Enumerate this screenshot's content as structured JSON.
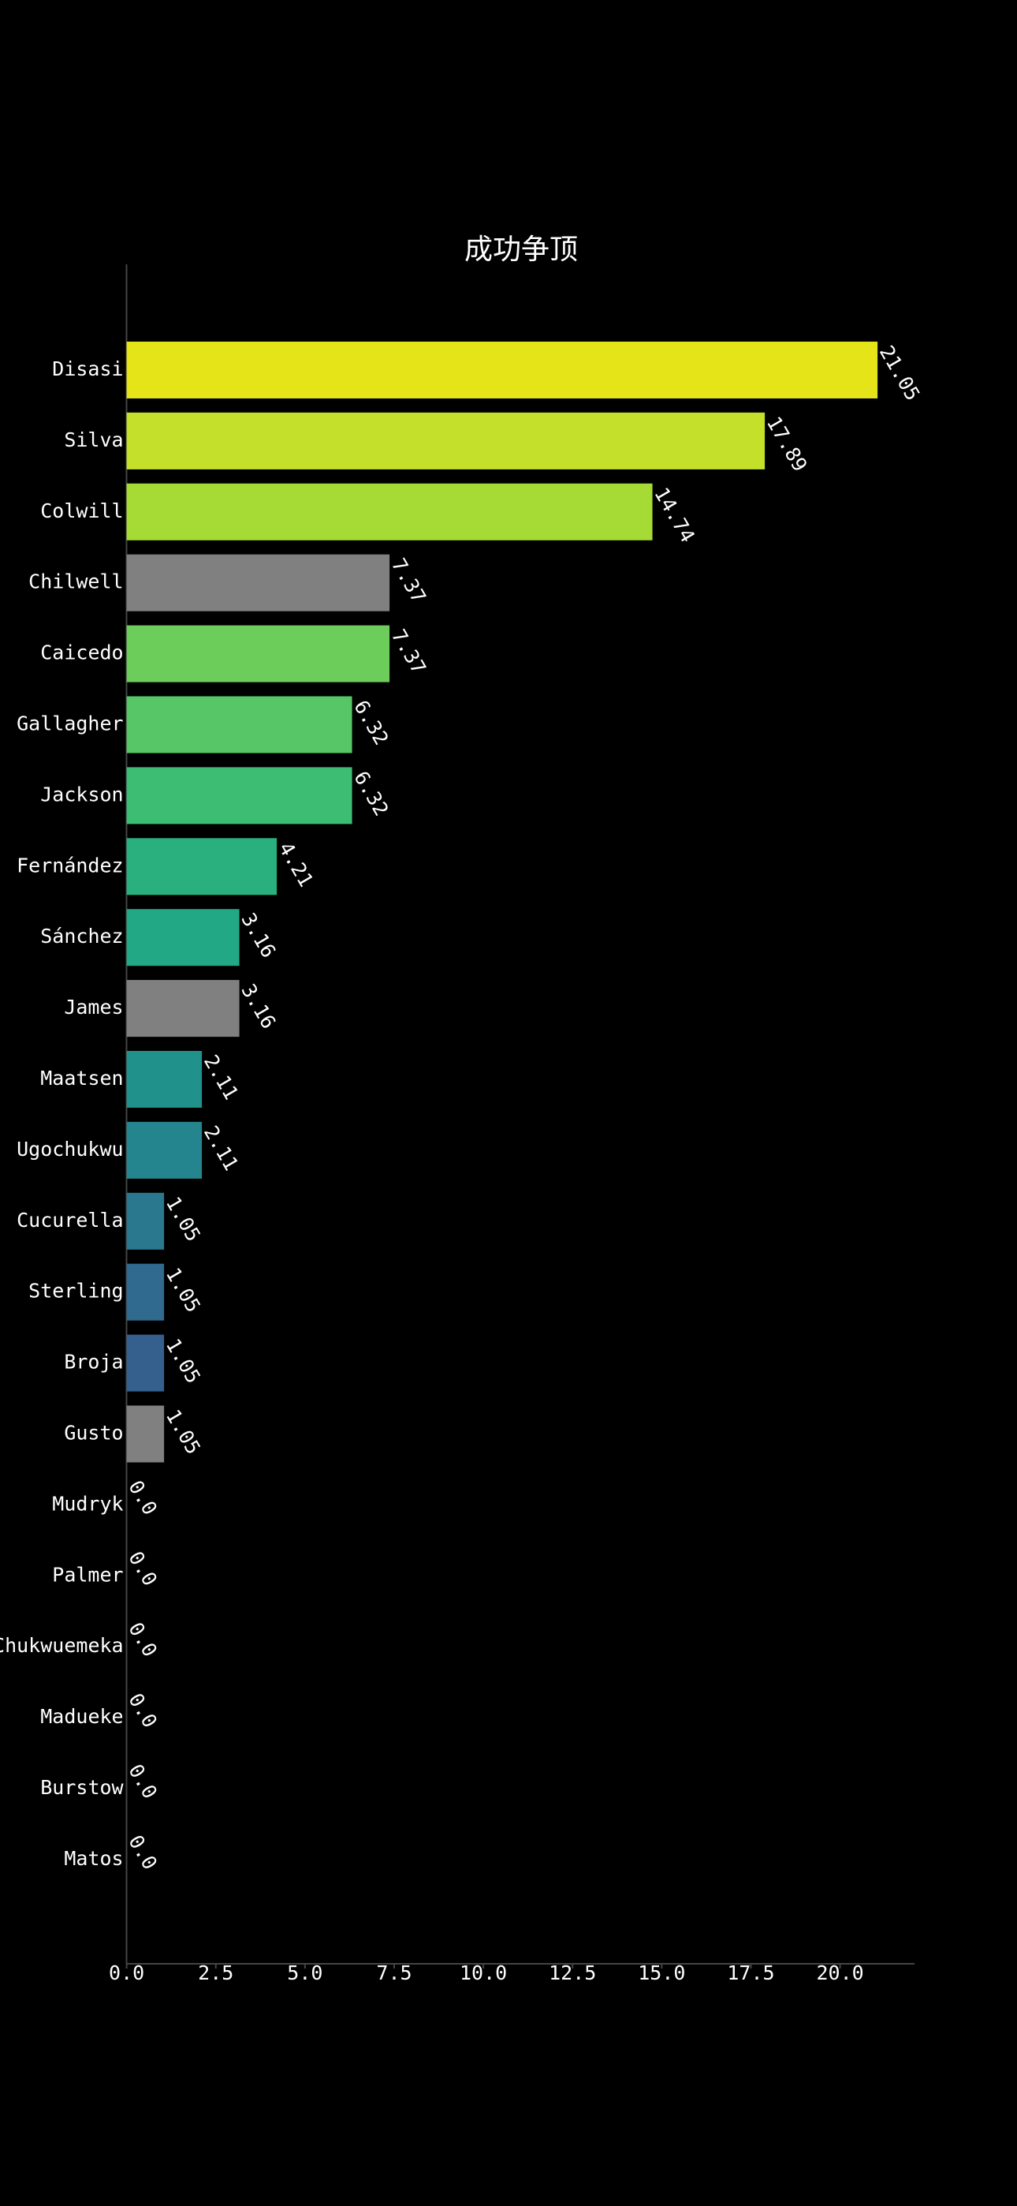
{
  "chart_data": {
    "type": "barh",
    "title": "成功争顶",
    "categories": [
      "Disasi",
      "Silva",
      "Colwill",
      "Chilwell",
      "Caicedo",
      "Gallagher",
      "Jackson",
      "Fernández",
      "Sánchez",
      "James",
      "Maatsen",
      "Ugochukwu",
      "Cucurella",
      "Sterling",
      "Broja",
      "Gusto",
      "Mudryk",
      "Palmer",
      "Chukwuemeka",
      "Madueke",
      "Burstow",
      "Matos"
    ],
    "values": [
      21.05,
      17.89,
      14.74,
      7.37,
      7.37,
      6.32,
      6.32,
      4.21,
      3.16,
      3.16,
      2.11,
      2.11,
      1.05,
      1.05,
      1.05,
      1.05,
      0,
      0,
      0,
      0,
      0,
      0
    ],
    "value_labels": [
      "21.05",
      "17.89",
      "14.74",
      "7.37",
      "7.37",
      "6.32",
      "6.32",
      "4.21",
      "3.16",
      "3.16",
      "2.11",
      "2.11",
      "1.05",
      "1.05",
      "1.05",
      "1.05",
      "0.0",
      "0.0",
      "0.0",
      "0.0",
      "0.0",
      "0.0"
    ],
    "colors": [
      "#e4e419",
      "#c4e02a",
      "#a6db36",
      "#808080",
      "#6ccd5a",
      "#56c667",
      "#3dbc74",
      "#2ab07f",
      "#22a884",
      "#808080",
      "#21918c",
      "#25858e",
      "#2a788e",
      "#306a8e",
      "#355f8d",
      "#808080",
      "#3e4989",
      "#433e85",
      "#472f7d",
      "#482374",
      "#471365",
      "#440154"
    ],
    "xlim": [
      0,
      22.1
    ],
    "xticks": [
      {
        "value": 0,
        "label": "0.0"
      },
      2.5,
      {
        "value": 5,
        "label": "5.0"
      },
      7.5,
      {
        "value": 10,
        "label": "10.0"
      },
      12.5,
      {
        "value": 15,
        "label": "15.0"
      },
      17.5,
      {
        "value": 20,
        "label": "20.0"
      }
    ]
  }
}
